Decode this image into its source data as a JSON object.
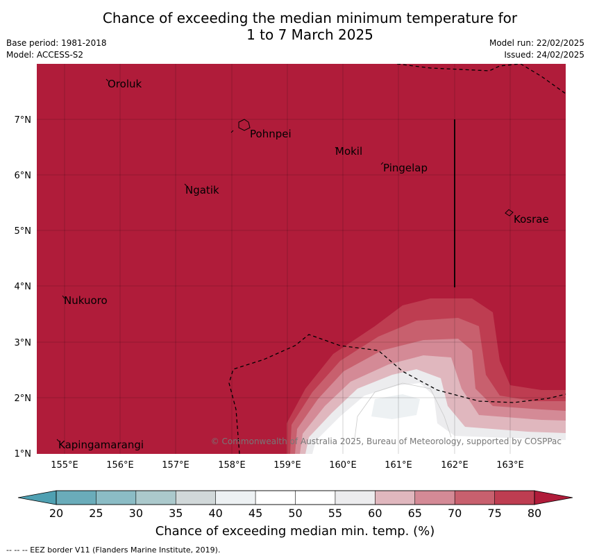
{
  "title": {
    "line1": "Chance of exceeding the median minimum temperature for",
    "line2": "1 to 7 March 2025"
  },
  "meta": {
    "base_period": "Base period: 1981-2018",
    "model": "Model: ACCESS-S2",
    "model_run": "Model run: 22/02/2025",
    "issued": "Issued: 24/02/2025"
  },
  "map": {
    "lon_range": [
      154.5,
      164
    ],
    "lat_range": [
      1,
      8
    ],
    "lon_ticks": [
      "155°E",
      "156°E",
      "157°E",
      "158°E",
      "159°E",
      "160°E",
      "161°E",
      "162°E",
      "163°E"
    ],
    "lat_ticks": [
      "1°N",
      "2°N",
      "3°N",
      "4°N",
      "5°N",
      "6°N",
      "7°N"
    ],
    "places": [
      {
        "name": "Oroluk",
        "lon": 155.7,
        "lat": 7.6
      },
      {
        "name": "Pohnpei",
        "lon": 158.3,
        "lat": 6.85
      },
      {
        "name": "Mokil",
        "lon": 159.8,
        "lat": 6.5
      },
      {
        "name": "Pingelap",
        "lon": 160.7,
        "lat": 6.2
      },
      {
        "name": "Ngatik",
        "lon": 157.2,
        "lat": 5.8
      },
      {
        "name": "Kosrae",
        "lon": 163.0,
        "lat": 5.3
      },
      {
        "name": "Nukuoro",
        "lon": 155.0,
        "lat": 3.8
      },
      {
        "name": "Kapingamarangi",
        "lon": 154.9,
        "lat": 1.1
      }
    ],
    "background_color": "#b01c3a",
    "copyright": "© Commonwealth of Australia 2025, Bureau of Meteorology, supported by COSPPac"
  },
  "colorbar": {
    "ticks": [
      "20",
      "25",
      "30",
      "35",
      "40",
      "45",
      "50",
      "55",
      "60",
      "65",
      "70",
      "75",
      "80"
    ],
    "colors": [
      "#6aacba",
      "#8bbcc5",
      "#abc9cc",
      "#d1d8d9",
      "#edf1f3",
      "#ffffff",
      "#ffffff",
      "#ececee",
      "#e0b7be",
      "#d48a96",
      "#c8606e",
      "#be3d51"
    ],
    "low_color": "#4fa0b2",
    "high_color": "#b01c3a",
    "label": "Chance of exceeding median min. temp. (%)"
  },
  "footnote": "--  --  -- EEZ border V11 (Flanders Marine Institute, 2019)."
}
